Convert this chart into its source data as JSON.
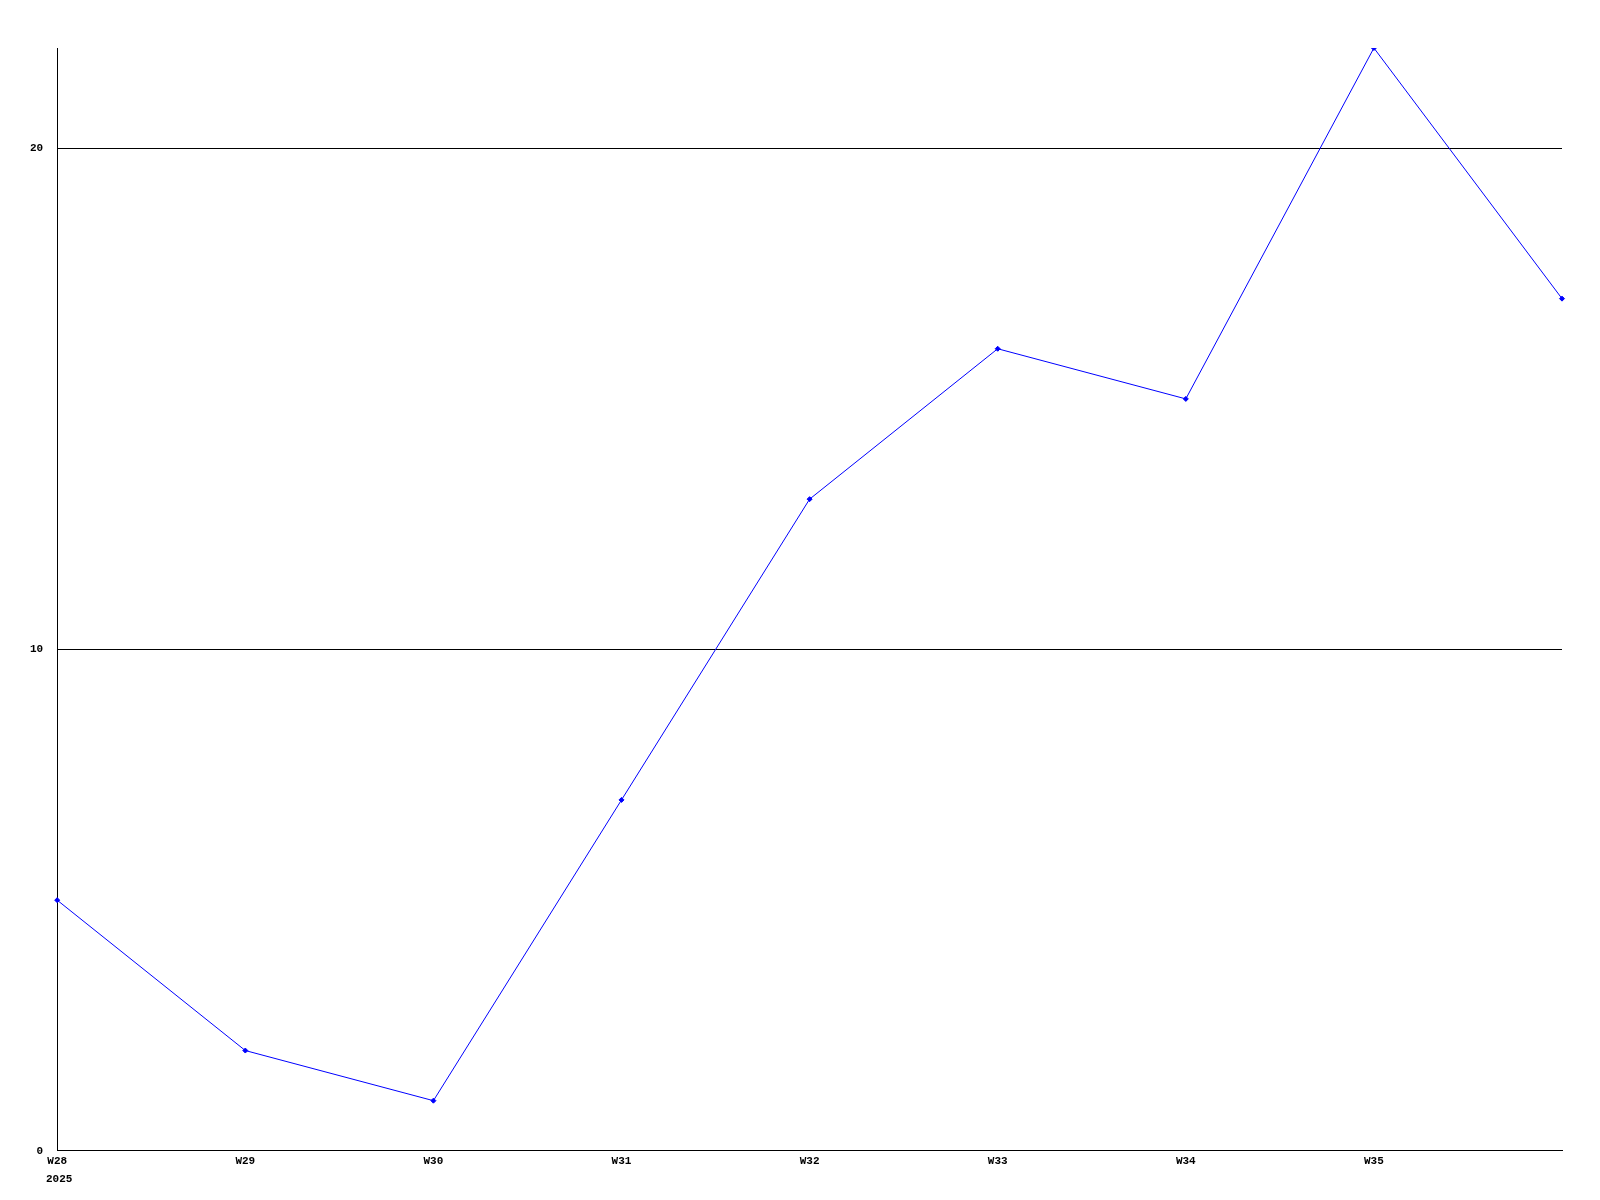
{
  "chart_data": {
    "type": "line",
    "categories": [
      "W28",
      "W29",
      "W30",
      "W31",
      "W32",
      "W33",
      "W34",
      "W35",
      null
    ],
    "series": [
      {
        "color": "#0000ff",
        "values": [
          5,
          2,
          1,
          7,
          13,
          16,
          15,
          22,
          17
        ]
      }
    ],
    "ylim": [
      0,
      22
    ],
    "yticks": [
      0,
      10,
      20
    ],
    "grid": "y",
    "legend": false,
    "marker": "diamond",
    "line_style": "solid",
    "annotations": [
      "2025"
    ]
  }
}
